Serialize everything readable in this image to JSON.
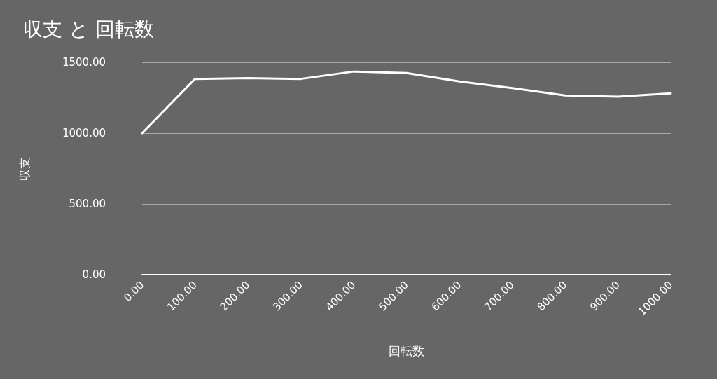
{
  "chart_data": {
    "type": "line",
    "title": "収支 と 回転数",
    "xlabel": "回転数",
    "ylabel": "収支",
    "x": [
      0,
      100,
      200,
      300,
      400,
      500,
      600,
      700,
      800,
      900,
      1000
    ],
    "series": [
      {
        "color": "#ffffff",
        "values": [
          1000,
          1383,
          1388,
          1383,
          1435,
          1424,
          1365,
          1318,
          1266,
          1258,
          1281
        ]
      }
    ],
    "xlim": [
      0,
      1000
    ],
    "xticks": [
      {
        "value": 0,
        "label": "0.00"
      },
      {
        "value": 100,
        "label": "100.00"
      },
      {
        "value": 200,
        "label": "200.00"
      },
      {
        "value": 300,
        "label": "300.00"
      },
      {
        "value": 400,
        "label": "400.00"
      },
      {
        "value": 500,
        "label": "500.00"
      },
      {
        "value": 600,
        "label": "600.00"
      },
      {
        "value": 700,
        "label": "700.00"
      },
      {
        "value": 800,
        "label": "800.00"
      },
      {
        "value": 900,
        "label": "900.00"
      },
      {
        "value": 1000,
        "label": "1000.00"
      }
    ],
    "ylim": [
      0,
      1500
    ],
    "yticks": [
      {
        "value": 0,
        "label": "0.00"
      },
      {
        "value": 500,
        "label": "500.00"
      },
      {
        "value": 1000,
        "label": "1000.00"
      },
      {
        "value": 1500,
        "label": "1500.00"
      }
    ],
    "grid": "y",
    "marker": "none",
    "line_style": "solid"
  }
}
